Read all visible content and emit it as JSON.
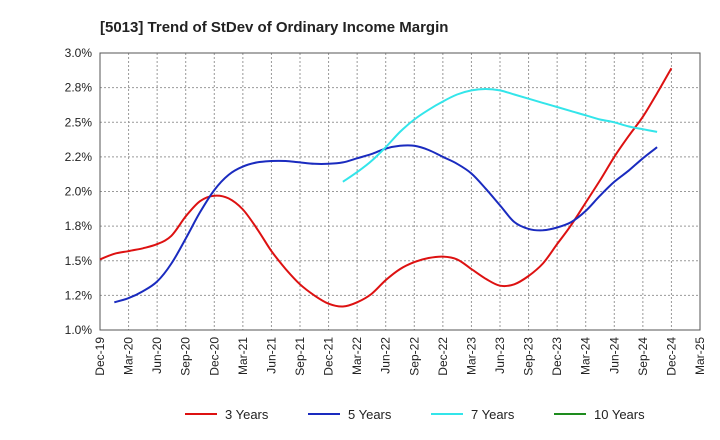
{
  "chart_data": {
    "type": "line",
    "title": "[5013]  Trend of StDev of Ordinary Income Margin",
    "x": [
      "Dec-19",
      "Mar-20",
      "Jun-20",
      "Sep-20",
      "Dec-20",
      "Mar-21",
      "Jun-21",
      "Sep-21",
      "Dec-21",
      "Mar-22",
      "Jun-22",
      "Sep-22",
      "Dec-22",
      "Mar-23",
      "Jun-23",
      "Sep-23",
      "Dec-23",
      "Mar-24",
      "Jun-24",
      "Sep-24",
      "Dec-24",
      "Mar-25"
    ],
    "y_ticks": [
      "1.0%",
      "1.2%",
      "1.5%",
      "1.8%",
      "2.0%",
      "2.2%",
      "2.5%",
      "2.8%",
      "3.0%"
    ],
    "ylim": [
      1.0,
      3.0
    ],
    "grid": true,
    "legend_position": "bottom",
    "series": [
      {
        "name": "3 Years",
        "color": "#dd1111",
        "points": [
          [
            0,
            1.51
          ],
          [
            0.5,
            1.55
          ],
          [
            1,
            1.57
          ],
          [
            1.5,
            1.59
          ],
          [
            2,
            1.62
          ],
          [
            2.5,
            1.68
          ],
          [
            3,
            1.82
          ],
          [
            3.5,
            1.93
          ],
          [
            4,
            1.97
          ],
          [
            4.5,
            1.95
          ],
          [
            5,
            1.87
          ],
          [
            5.5,
            1.73
          ],
          [
            6,
            1.57
          ],
          [
            6.5,
            1.44
          ],
          [
            7,
            1.33
          ],
          [
            7.5,
            1.25
          ],
          [
            8,
            1.19
          ],
          [
            8.5,
            1.17
          ],
          [
            9,
            1.2
          ],
          [
            9.5,
            1.26
          ],
          [
            10,
            1.36
          ],
          [
            10.5,
            1.44
          ],
          [
            11,
            1.49
          ],
          [
            11.5,
            1.52
          ],
          [
            12,
            1.53
          ],
          [
            12.5,
            1.51
          ],
          [
            13,
            1.44
          ],
          [
            13.5,
            1.37
          ],
          [
            14,
            1.32
          ],
          [
            14.5,
            1.33
          ],
          [
            15,
            1.39
          ],
          [
            15.5,
            1.48
          ],
          [
            16,
            1.62
          ],
          [
            16.5,
            1.76
          ],
          [
            17,
            1.92
          ],
          [
            17.5,
            2.08
          ],
          [
            18,
            2.25
          ],
          [
            18.5,
            2.4
          ],
          [
            19,
            2.54
          ],
          [
            19.5,
            2.71
          ],
          [
            20,
            2.89
          ]
        ]
      },
      {
        "name": "5 Years",
        "color": "#1a2bbf",
        "points": [
          [
            0.5,
            1.2
          ],
          [
            1,
            1.23
          ],
          [
            1.5,
            1.28
          ],
          [
            2,
            1.35
          ],
          [
            2.5,
            1.48
          ],
          [
            3,
            1.66
          ],
          [
            3.5,
            1.85
          ],
          [
            4,
            2.01
          ],
          [
            4.5,
            2.12
          ],
          [
            5,
            2.18
          ],
          [
            5.5,
            2.21
          ],
          [
            6,
            2.22
          ],
          [
            6.5,
            2.22
          ],
          [
            7,
            2.21
          ],
          [
            7.5,
            2.2
          ],
          [
            8,
            2.2
          ],
          [
            8.5,
            2.21
          ],
          [
            9,
            2.24
          ],
          [
            9.5,
            2.27
          ],
          [
            10,
            2.31
          ],
          [
            10.5,
            2.33
          ],
          [
            11,
            2.33
          ],
          [
            11.5,
            2.3
          ],
          [
            12,
            2.25
          ],
          [
            12.5,
            2.2
          ],
          [
            13,
            2.13
          ],
          [
            13.5,
            2.02
          ],
          [
            14,
            1.9
          ],
          [
            14.5,
            1.78
          ],
          [
            15,
            1.73
          ],
          [
            15.5,
            1.72
          ],
          [
            16,
            1.74
          ],
          [
            16.5,
            1.78
          ],
          [
            17,
            1.86
          ],
          [
            17.5,
            1.97
          ],
          [
            18,
            2.07
          ],
          [
            18.5,
            2.15
          ],
          [
            19,
            2.24
          ],
          [
            19.5,
            2.32
          ]
        ]
      },
      {
        "name": "7 Years",
        "color": "#33e5ea",
        "points": [
          [
            8.5,
            2.07
          ],
          [
            9,
            2.14
          ],
          [
            9.5,
            2.22
          ],
          [
            10,
            2.32
          ],
          [
            10.5,
            2.43
          ],
          [
            11,
            2.52
          ],
          [
            11.5,
            2.59
          ],
          [
            12,
            2.65
          ],
          [
            12.5,
            2.7
          ],
          [
            13,
            2.73
          ],
          [
            13.5,
            2.74
          ],
          [
            14,
            2.73
          ],
          [
            14.5,
            2.7
          ],
          [
            15,
            2.67
          ],
          [
            15.5,
            2.64
          ],
          [
            16,
            2.61
          ],
          [
            16.5,
            2.58
          ],
          [
            17,
            2.55
          ],
          [
            17.5,
            2.52
          ],
          [
            18,
            2.5
          ],
          [
            18.5,
            2.47
          ],
          [
            19,
            2.45
          ],
          [
            19.5,
            2.43
          ]
        ]
      },
      {
        "name": "10 Years",
        "color": "#1e8c1e",
        "points": []
      }
    ]
  }
}
